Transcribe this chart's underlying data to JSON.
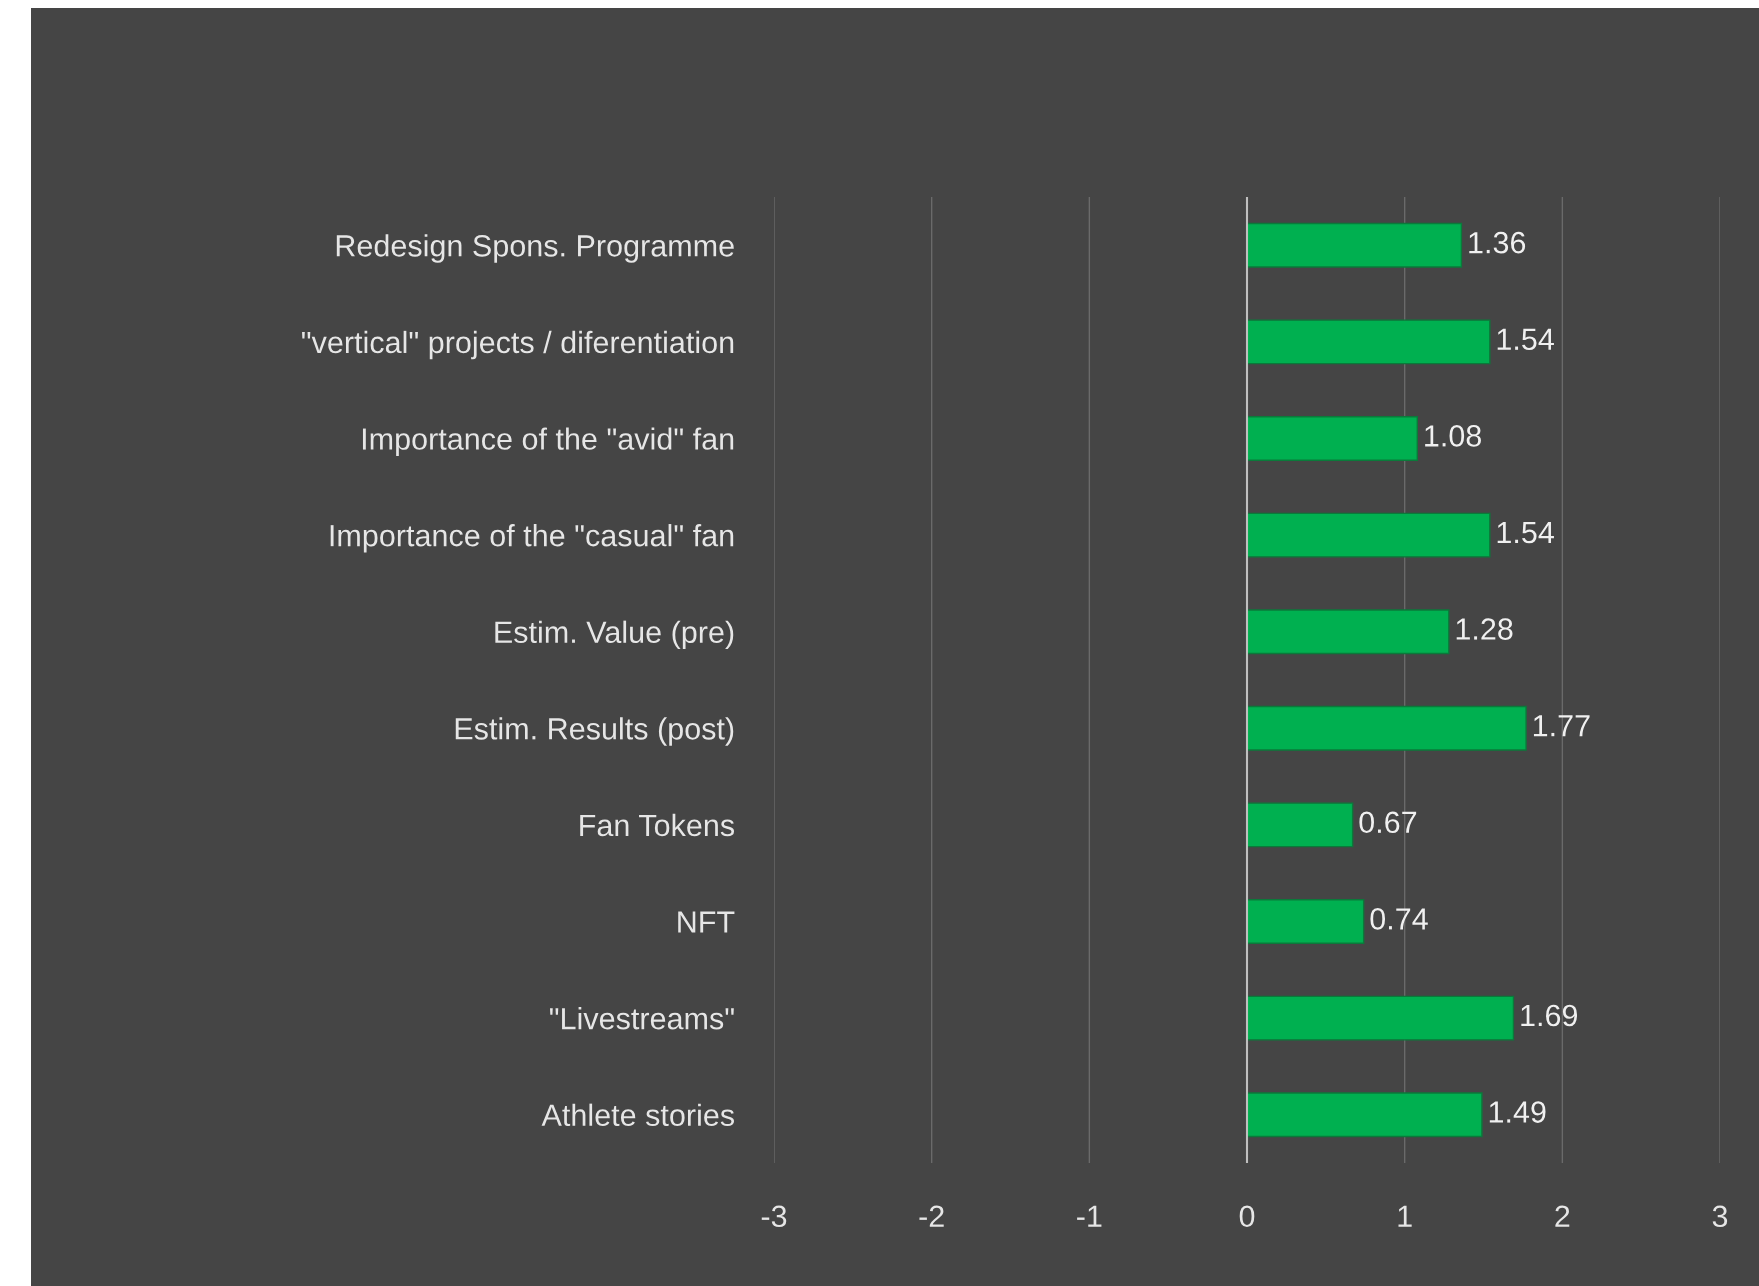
{
  "chart_data": {
    "type": "bar",
    "orientation": "horizontal",
    "categories": [
      "Redesign Spons. Programme",
      "\"vertical\" projects / diferentiation",
      "Importance of the \"avid\" fan",
      "Importance of the \"casual\" fan",
      "Estim. Value (pre)",
      "Estim. Results (post)",
      "Fan Tokens",
      "NFT",
      "\"Livestreams\"",
      "Athlete stories"
    ],
    "values": [
      1.36,
      1.54,
      1.08,
      1.54,
      1.28,
      1.77,
      0.67,
      0.74,
      1.69,
      1.49
    ],
    "color": "#00b050",
    "xlim": [
      -3,
      3
    ],
    "xticks": [
      -3,
      -2,
      -1,
      0,
      1,
      2,
      3
    ],
    "grid": "x",
    "data_labels": true,
    "legend": false
  }
}
